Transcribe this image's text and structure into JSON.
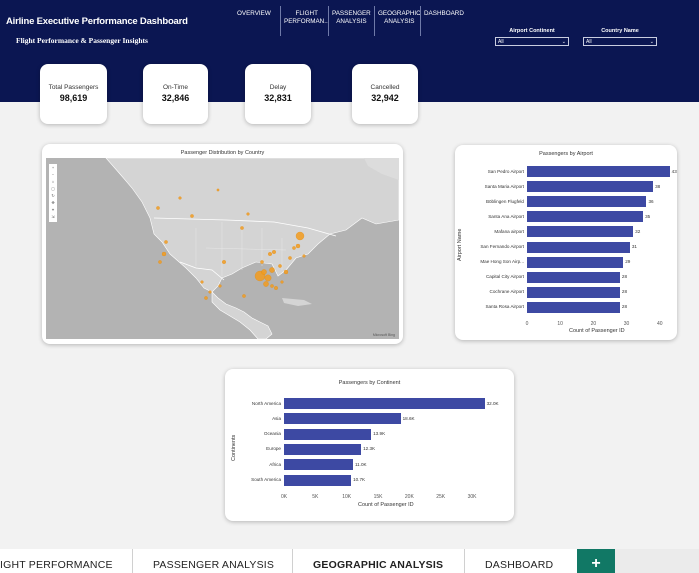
{
  "header": {
    "title": "Airline Executive Performance Dashboard",
    "subtitle": "Flight Performance & Passenger Insights",
    "nav": [
      {
        "line1": "OVERVIEW",
        "line2": ""
      },
      {
        "line1": "FLIGHT",
        "line2": "PERFORMAN..."
      },
      {
        "line1": "PASSENGER",
        "line2": "ANALYSIS"
      },
      {
        "line1": "GEOGRAPHIC",
        "line2": "ANALYSIS"
      },
      {
        "line1": "DASHBOARD",
        "line2": ""
      }
    ],
    "filters": [
      {
        "label": "Airport Continent",
        "value": "All"
      },
      {
        "label": "Country Name",
        "value": "All"
      }
    ]
  },
  "kpis": [
    {
      "label": "Total Passengers",
      "value": "98,619"
    },
    {
      "label": "On-Time",
      "value": "32,846"
    },
    {
      "label": "Delay",
      "value": "32,831"
    },
    {
      "label": "Cancelled",
      "value": "32,942"
    }
  ],
  "map": {
    "title": "Passenger Distribution by Country",
    "attribution": "Microsoft Bing",
    "point_color": "#f29b1d"
  },
  "chart_data": [
    {
      "type": "bar",
      "orientation": "horizontal",
      "title": "Passengers by Airport",
      "ylabel": "Airport Name",
      "xlabel": "Count of Passenger ID",
      "categories": [
        "San Pedro Airport",
        "Santa Maria Airport",
        "Böblingen Flugfeld",
        "Santa Ana Airport",
        "Mafana airport",
        "San Fernando Airport",
        "Mae Hong Son Airp...",
        "Capital City Airport",
        "Cochrane Airport",
        "Santa Rosa Airport"
      ],
      "values": [
        43,
        38,
        36,
        35,
        32,
        31,
        29,
        28,
        28,
        28
      ],
      "value_labels": [
        "43",
        "38",
        "36",
        "35",
        "32",
        "31",
        "29",
        "28",
        "28",
        "28"
      ],
      "xticks": [
        "0",
        "10",
        "20",
        "30",
        "40"
      ],
      "xlim": [
        0,
        44
      ],
      "color": "#3d49a3"
    },
    {
      "type": "bar",
      "orientation": "horizontal",
      "title": "Passengers by Continent",
      "ylabel": "Continents",
      "xlabel": "Count of Passenger ID",
      "categories": [
        "North America",
        "Asia",
        "Oceania",
        "Europe",
        "Africa",
        "South America"
      ],
      "values": [
        32000,
        18600,
        13900,
        12300,
        11000,
        10700
      ],
      "value_labels": [
        "32.0K",
        "18.6K",
        "13.9K",
        "12.3K",
        "11.0K",
        "10.7K"
      ],
      "xticks": [
        "0K",
        "5K",
        "10K",
        "15K",
        "20K",
        "25K",
        "30K"
      ],
      "xlim": [
        0,
        33500
      ],
      "color": "#3d49a3"
    }
  ],
  "tabs": [
    {
      "label": "IGHT PERFORMANCE",
      "active": false
    },
    {
      "label": "PASSENGER ANALYSIS",
      "active": false
    },
    {
      "label": "GEOGRAPHIC ANALYSIS",
      "active": true
    },
    {
      "label": "DASHBOARD",
      "active": false
    }
  ],
  "add_tab_label": "+"
}
